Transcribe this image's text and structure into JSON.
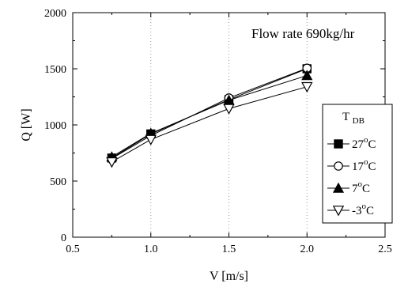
{
  "chart_data": {
    "type": "line",
    "annotation": "Flow rate 690kg/hr",
    "xlabel": "V [m/s]",
    "ylabel": "Q [W]",
    "xlim": [
      0.5,
      2.5
    ],
    "ylim": [
      0,
      2000
    ],
    "xticks": [
      0.5,
      1.0,
      1.5,
      2.0,
      2.5
    ],
    "xtick_labels": [
      "0.5",
      "1.0",
      "1.5",
      "2.0",
      "2.5"
    ],
    "yticks": [
      0,
      500,
      1000,
      1500,
      2000
    ],
    "ytick_labels": [
      "0",
      "500",
      "1000",
      "1500",
      "2000"
    ],
    "grid": "vertical dotted",
    "legend": {
      "title_main": "T",
      "title_sub": "DB",
      "placement": "right",
      "entries": [
        {
          "value": "27",
          "sup": "o",
          "unit": "C"
        },
        {
          "value": "17",
          "sup": "o",
          "unit": "C"
        },
        {
          "value": "7",
          "sup": "o",
          "unit": "C"
        },
        {
          "value": "-3",
          "sup": "o",
          "unit": "C"
        }
      ]
    },
    "x": [
      0.75,
      1.0,
      1.5,
      2.0
    ],
    "series": [
      {
        "key": "27C",
        "marker": "square-filled",
        "values": [
          705,
          920,
          1225,
          1500
        ]
      },
      {
        "key": "17C",
        "marker": "circle-open",
        "values": [
          700,
          905,
          1240,
          1505
        ]
      },
      {
        "key": "7C",
        "marker": "triangle-up-filled",
        "values": [
          715,
          925,
          1220,
          1440
        ]
      },
      {
        "key": "-3C",
        "marker": "triangle-down-open",
        "values": [
          670,
          870,
          1145,
          1340
        ]
      }
    ]
  }
}
